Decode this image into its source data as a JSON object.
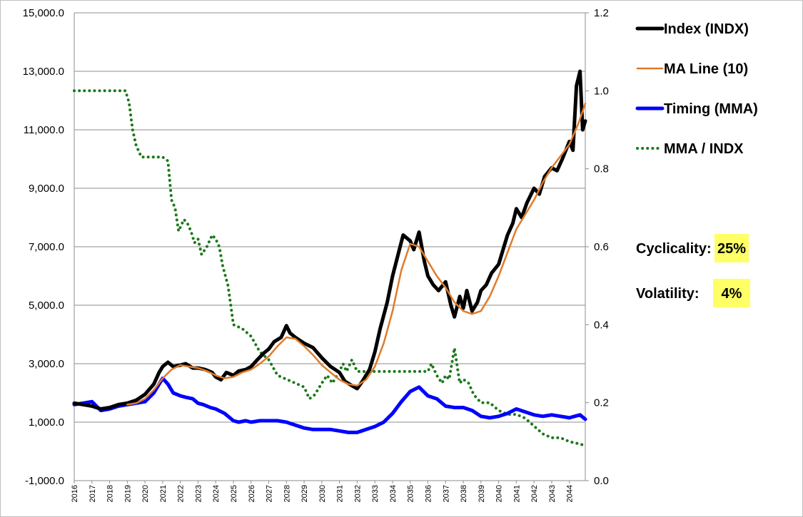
{
  "chart_data": {
    "type": "line",
    "left_axis": {
      "ylim": [
        -1000,
        15000
      ],
      "ticks": [
        "-1,000.0",
        "1,000.0",
        "3,000.0",
        "5,000.0",
        "7,000.0",
        "9,000.0",
        "11,000.0",
        "13,000.0",
        "15,000.0"
      ]
    },
    "right_axis": {
      "ylim": [
        0,
        1.2
      ],
      "ticks": [
        "0.0",
        "0.2",
        "0.4",
        "0.6",
        "0.8",
        "1.0",
        "1.2"
      ]
    },
    "x_axis": {
      "xlim": [
        2016,
        2044.9
      ],
      "ticks": [
        "2016",
        "2017",
        "2018",
        "2019",
        "2020",
        "2021",
        "2022",
        "2023",
        "2024",
        "2025",
        "2026",
        "2027",
        "2028",
        "2029",
        "2030",
        "2031",
        "2032",
        "2033",
        "2034",
        "2035",
        "2036",
        "2037",
        "2038",
        "2039",
        "2040",
        "2041",
        "2042",
        "2043",
        "2044"
      ]
    },
    "grid": "horizontal",
    "legend_position": "top-right",
    "series": [
      {
        "name": "Index (INDX)",
        "axis": "left",
        "color": "#000000",
        "style": "solid-thick",
        "x": [
          2016.0,
          2016.5,
          2017.0,
          2017.5,
          2018.0,
          2018.5,
          2019.0,
          2019.5,
          2020.0,
          2020.5,
          2020.8,
          2021.0,
          2021.3,
          2021.6,
          2022.0,
          2022.3,
          2022.7,
          2023.0,
          2023.4,
          2023.8,
          2024.0,
          2024.3,
          2024.6,
          2025.0,
          2025.3,
          2025.7,
          2026.0,
          2026.3,
          2026.7,
          2027.0,
          2027.3,
          2027.7,
          2028.0,
          2028.2,
          2028.5,
          2029.0,
          2029.5,
          2030.0,
          2030.5,
          2031.0,
          2031.3,
          2031.7,
          2032.0,
          2032.3,
          2032.7,
          2033.0,
          2033.3,
          2033.7,
          2034.0,
          2034.3,
          2034.6,
          2035.0,
          2035.2,
          2035.5,
          2035.8,
          2036.0,
          2036.3,
          2036.6,
          2037.0,
          2037.3,
          2037.5,
          2037.8,
          2038.0,
          2038.2,
          2038.5,
          2038.8,
          2039.0,
          2039.3,
          2039.6,
          2040.0,
          2040.3,
          2040.5,
          2040.8,
          2041.0,
          2041.3,
          2041.6,
          2042.0,
          2042.3,
          2042.6,
          2043.0,
          2043.3,
          2043.6,
          2044.0,
          2044.2,
          2044.4,
          2044.6,
          2044.75,
          2044.9
        ],
        "values": [
          1650,
          1600,
          1550,
          1450,
          1500,
          1600,
          1650,
          1750,
          1950,
          2300,
          2700,
          2900,
          3050,
          2900,
          2950,
          3000,
          2850,
          2850,
          2800,
          2700,
          2550,
          2450,
          2700,
          2600,
          2750,
          2800,
          2900,
          3100,
          3350,
          3500,
          3750,
          3900,
          4300,
          4050,
          3900,
          3700,
          3550,
          3200,
          2900,
          2700,
          2400,
          2250,
          2150,
          2400,
          2800,
          3400,
          4200,
          5100,
          6000,
          6700,
          7400,
          7200,
          6900,
          7500,
          6500,
          6000,
          5700,
          5500,
          5800,
          5000,
          4600,
          5300,
          4900,
          5500,
          4800,
          5100,
          5500,
          5700,
          6100,
          6400,
          7000,
          7400,
          7800,
          8300,
          8000,
          8500,
          9000,
          8800,
          9400,
          9700,
          9600,
          10000,
          10600,
          10300,
          12500,
          13000,
          11000,
          11300
        ]
      },
      {
        "name": "MA Line (10)",
        "axis": "left",
        "color": "#e07b2a",
        "style": "solid",
        "x": [
          2019.0,
          2019.5,
          2020.0,
          2020.5,
          2021.0,
          2021.5,
          2022.0,
          2022.5,
          2023.0,
          2023.5,
          2024.0,
          2024.5,
          2025.0,
          2025.5,
          2026.0,
          2026.5,
          2027.0,
          2027.5,
          2028.0,
          2028.5,
          2029.0,
          2029.5,
          2030.0,
          2030.5,
          2031.0,
          2031.5,
          2032.0,
          2032.5,
          2033.0,
          2033.5,
          2034.0,
          2034.5,
          2035.0,
          2035.5,
          2036.0,
          2036.5,
          2037.0,
          2037.5,
          2038.0,
          2038.5,
          2039.0,
          2039.5,
          2040.0,
          2040.5,
          2041.0,
          2041.5,
          2042.0,
          2042.5,
          2043.0,
          2043.5,
          2044.0,
          2044.5,
          2044.9
        ],
        "values": [
          1600,
          1650,
          1800,
          2100,
          2500,
          2800,
          2950,
          2900,
          2850,
          2750,
          2600,
          2500,
          2550,
          2700,
          2800,
          3000,
          3250,
          3600,
          3900,
          3850,
          3600,
          3300,
          2950,
          2700,
          2450,
          2300,
          2250,
          2450,
          2900,
          3700,
          4800,
          6200,
          7100,
          7000,
          6500,
          6000,
          5600,
          5100,
          4800,
          4700,
          4800,
          5300,
          6000,
          6800,
          7600,
          8100,
          8600,
          9200,
          9700,
          10100,
          10500,
          11200,
          11900
        ]
      },
      {
        "name": "Timing (MMA)",
        "axis": "left",
        "color": "#0000ff",
        "style": "solid-thick",
        "x": [
          2016.0,
          2016.5,
          2017.0,
          2017.5,
          2018.0,
          2018.5,
          2019.0,
          2019.5,
          2020.0,
          2020.5,
          2020.8,
          2021.0,
          2021.3,
          2021.6,
          2022.0,
          2022.3,
          2022.7,
          2023.0,
          2023.3,
          2023.7,
          2024.0,
          2024.5,
          2025.0,
          2025.3,
          2025.7,
          2026.0,
          2026.5,
          2027.0,
          2027.5,
          2028.0,
          2028.5,
          2029.0,
          2029.5,
          2030.0,
          2030.5,
          2031.0,
          2031.5,
          2032.0,
          2032.5,
          2033.0,
          2033.5,
          2034.0,
          2034.5,
          2035.0,
          2035.5,
          2036.0,
          2036.5,
          2037.0,
          2037.5,
          2038.0,
          2038.5,
          2039.0,
          2039.5,
          2040.0,
          2040.5,
          2041.0,
          2041.5,
          2042.0,
          2042.5,
          2043.0,
          2043.5,
          2044.0,
          2044.3,
          2044.6,
          2044.9
        ],
        "values": [
          1600,
          1650,
          1700,
          1400,
          1450,
          1550,
          1600,
          1650,
          1700,
          2000,
          2300,
          2500,
          2300,
          2000,
          1900,
          1850,
          1800,
          1650,
          1600,
          1500,
          1450,
          1300,
          1050,
          1000,
          1050,
          1000,
          1050,
          1050,
          1050,
          1000,
          900,
          800,
          750,
          750,
          750,
          700,
          650,
          650,
          750,
          850,
          1000,
          1300,
          1700,
          2050,
          2200,
          1900,
          1800,
          1550,
          1500,
          1500,
          1400,
          1200,
          1150,
          1200,
          1300,
          1450,
          1350,
          1250,
          1200,
          1250,
          1200,
          1150,
          1200,
          1250,
          1100
        ]
      },
      {
        "name": "MMA / INDX",
        "axis": "right",
        "color": "#1a7a1a",
        "style": "dotted",
        "x": [
          2016.0,
          2016.5,
          2017.0,
          2017.5,
          2018.0,
          2018.5,
          2018.9,
          2019.1,
          2019.3,
          2019.5,
          2019.8,
          2020.0,
          2020.5,
          2021.0,
          2021.3,
          2021.5,
          2021.7,
          2021.9,
          2022.0,
          2022.2,
          2022.4,
          2022.6,
          2022.8,
          2023.0,
          2023.2,
          2023.5,
          2023.8,
          2024.0,
          2024.2,
          2024.4,
          2024.7,
          2025.0,
          2025.5,
          2026.0,
          2026.5,
          2027.0,
          2027.5,
          2028.0,
          2028.5,
          2029.0,
          2029.3,
          2029.6,
          2030.0,
          2030.3,
          2030.6,
          2031.0,
          2031.2,
          2031.4,
          2031.7,
          2032.0,
          2032.5,
          2033.0,
          2033.5,
          2034.0,
          2034.5,
          2035.0,
          2035.5,
          2036.0,
          2036.2,
          2036.5,
          2036.8,
          2037.0,
          2037.2,
          2037.5,
          2037.8,
          2038.0,
          2038.3,
          2038.6,
          2039.0,
          2039.5,
          2040.0,
          2040.5,
          2041.0,
          2041.5,
          2042.0,
          2042.5,
          2043.0,
          2043.5,
          2044.0,
          2044.5,
          2044.9
        ],
        "values": [
          1.0,
          1.0,
          1.0,
          1.0,
          1.0,
          1.0,
          1.0,
          0.97,
          0.9,
          0.86,
          0.83,
          0.83,
          0.83,
          0.83,
          0.82,
          0.72,
          0.7,
          0.64,
          0.65,
          0.67,
          0.66,
          0.64,
          0.61,
          0.62,
          0.58,
          0.6,
          0.63,
          0.62,
          0.6,
          0.55,
          0.5,
          0.4,
          0.39,
          0.37,
          0.33,
          0.31,
          0.27,
          0.26,
          0.25,
          0.24,
          0.21,
          0.22,
          0.25,
          0.27,
          0.25,
          0.28,
          0.3,
          0.28,
          0.31,
          0.28,
          0.28,
          0.28,
          0.28,
          0.28,
          0.28,
          0.28,
          0.28,
          0.28,
          0.3,
          0.27,
          0.25,
          0.27,
          0.26,
          0.34,
          0.25,
          0.26,
          0.25,
          0.22,
          0.2,
          0.2,
          0.18,
          0.17,
          0.17,
          0.16,
          0.14,
          0.12,
          0.11,
          0.11,
          0.1,
          0.095,
          0.09
        ]
      }
    ],
    "stats": [
      {
        "label": "Cyclicality:",
        "value": "25%"
      },
      {
        "label": "Volatility:",
        "value": "4%"
      }
    ],
    "highlight_color": "#ffff66"
  }
}
